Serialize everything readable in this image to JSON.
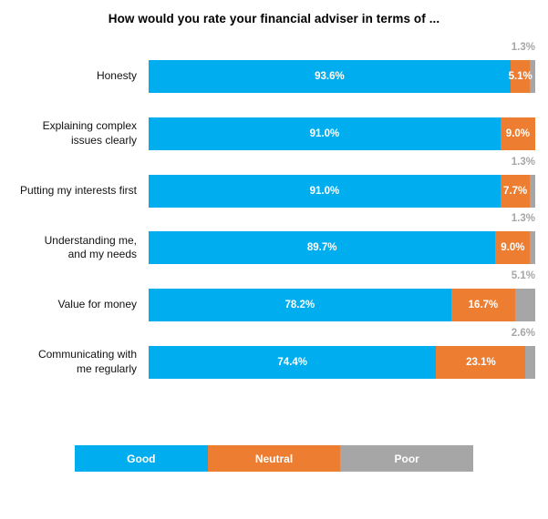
{
  "chart_data": {
    "type": "bar",
    "orientation": "horizontal-stacked",
    "title": "How would you rate your financial adviser in terms of ...",
    "categories": [
      "Honesty",
      "Explaining complex\nissues clearly",
      "Putting my interests first",
      "Understanding me,\nand my needs",
      "Value for money",
      "Communicating with\nme regularly"
    ],
    "series": [
      {
        "name": "Good",
        "color": "#00AEEF",
        "values": [
          93.6,
          91.0,
          91.0,
          89.7,
          78.2,
          74.4
        ],
        "labels": [
          "93.6%",
          "91.0%",
          "91.0%",
          "89.7%",
          "78.2%",
          "74.4%"
        ]
      },
      {
        "name": "Neutral",
        "color": "#ED7D31",
        "values": [
          5.1,
          9.0,
          7.7,
          9.0,
          16.7,
          23.1
        ],
        "labels": [
          "5.1%",
          "9.0%",
          "7.7%",
          "9.0%",
          "16.7%",
          "23.1%"
        ]
      },
      {
        "name": "Poor",
        "color": "#A6A6A6",
        "values": [
          1.3,
          0.0,
          1.3,
          1.3,
          5.1,
          2.6
        ],
        "labels": [
          "1.3%",
          "",
          "1.3%",
          "1.3%",
          "5.1%",
          "2.6%"
        ]
      }
    ],
    "xlim": [
      0,
      100
    ],
    "grid": false,
    "legend_position": "bottom",
    "poor_label_color": "#A6A6A6"
  }
}
